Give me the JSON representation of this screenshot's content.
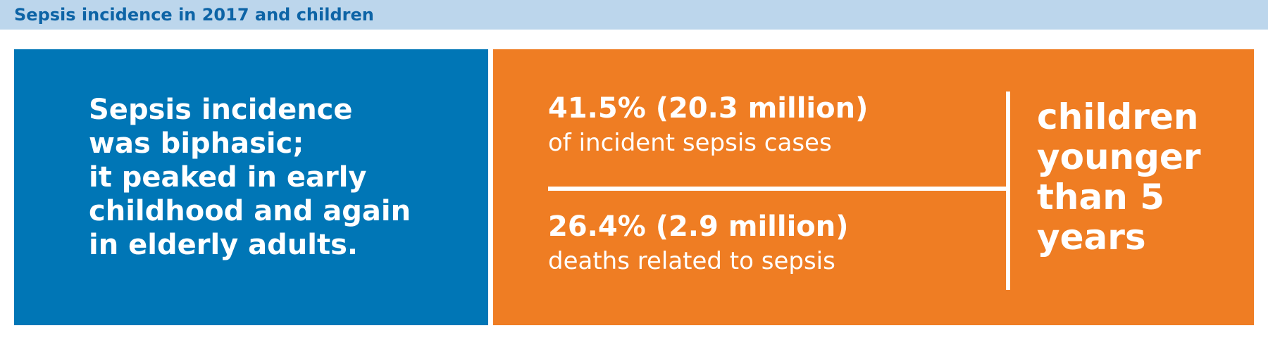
{
  "header": {
    "title": "Sepsis incidence in 2017 and children"
  },
  "left_panel": {
    "lines": [
      "Sepsis incidence",
      "was biphasic;",
      "it peaked in early",
      "childhood and again",
      "in elderly adults."
    ]
  },
  "right_panel": {
    "stats": [
      {
        "value": "41.5% (20.3 million)",
        "description": "of incident sepsis cases"
      },
      {
        "value": "26.4% (2.9 million)",
        "description": "deaths related to sepsis"
      }
    ],
    "side_lines": [
      "children",
      "younger",
      "than 5",
      "years"
    ]
  },
  "colors": {
    "header_background": "#bcd6ec",
    "header_text": "#0d64a6",
    "blue_panel": "#0076b6",
    "orange_panel": "#ef7d23",
    "text_light": "#ffffff"
  }
}
